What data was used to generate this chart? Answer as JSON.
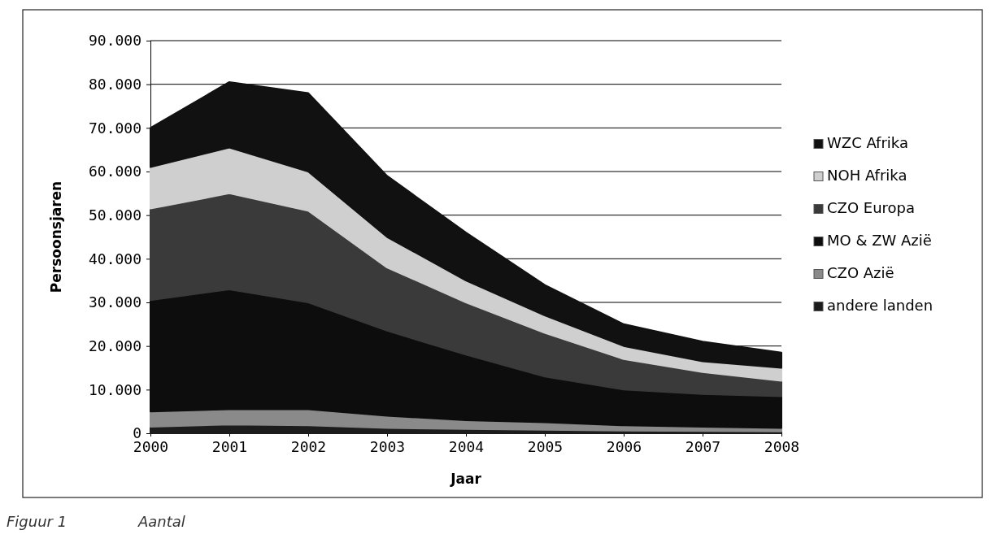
{
  "chart_data": {
    "type": "area",
    "stacked": true,
    "xlabel": "Jaar",
    "ylabel": "Persoonsjaren",
    "x": [
      2000,
      2001,
      2002,
      2003,
      2004,
      2005,
      2006,
      2007,
      2008
    ],
    "xlim": [
      2000,
      2008
    ],
    "xticks": [
      2000,
      2001,
      2002,
      2003,
      2004,
      2005,
      2006,
      2007,
      2008
    ],
    "ylim": [
      0,
      90000
    ],
    "yticks": [
      0,
      {
        "value": 10000,
        "label": "10.000"
      },
      {
        "value": 20000,
        "label": "20.000"
      },
      {
        "value": 30000,
        "label": "30.000"
      },
      {
        "value": 40000,
        "label": "40.000"
      },
      {
        "value": 50000,
        "label": "50.000"
      },
      {
        "value": 60000,
        "label": "60.000"
      },
      {
        "value": 70000,
        "label": "70.000"
      },
      {
        "value": 80000,
        "label": "80.000"
      },
      {
        "value": 90000,
        "label": "90.000"
      }
    ],
    "grid": "y",
    "legend": "right",
    "series": [
      {
        "name": "andere landen",
        "color": "#1c1c1c",
        "values": [
          1500,
          2000,
          1800,
          1200,
          1000,
          800,
          600,
          500,
          400
        ]
      },
      {
        "name": "CZO Azië",
        "color": "#8a8a8a",
        "values": [
          3500,
          3500,
          3700,
          2800,
          2000,
          1700,
          1200,
          1000,
          800
        ]
      },
      {
        "name": "MO & ZW Azië",
        "color": "#0d0d0d",
        "values": [
          25500,
          27500,
          24500,
          19500,
          15000,
          10500,
          8200,
          7500,
          7300
        ]
      },
      {
        "name": "CZO Europa",
        "color": "#3a3a3a",
        "values": [
          21000,
          22000,
          21000,
          14500,
          12000,
          10000,
          7000,
          5000,
          3500
        ]
      },
      {
        "name": "NOH Afrika",
        "color": "#cfcfcf",
        "values": [
          9500,
          10500,
          9000,
          7000,
          5000,
          4000,
          3000,
          2500,
          3000
        ]
      },
      {
        "name": "WZC Afrika",
        "color": "#111111",
        "values": [
          9000,
          15000,
          18000,
          14000,
          11000,
          7000,
          5000,
          4500,
          3500
        ]
      }
    ],
    "annotations": [
      "Figuur 1",
      "Aantal"
    ]
  }
}
